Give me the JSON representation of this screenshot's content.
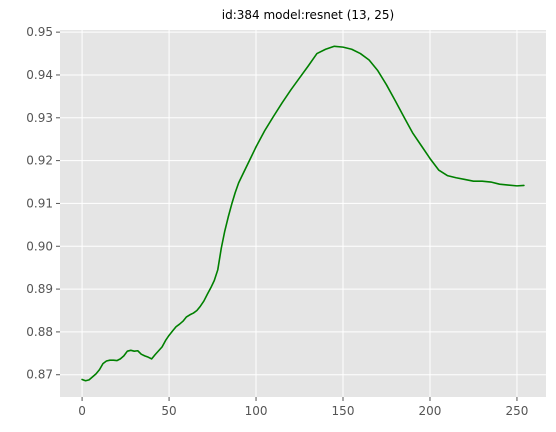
{
  "chart_data": {
    "type": "line",
    "title": "id:384 model:resnet (13, 25)",
    "xlabel": "",
    "ylabel": "",
    "xlim": [
      -12.7,
      266.7
    ],
    "ylim": [
      0.8648,
      0.9505
    ],
    "xticks": [
      0,
      50,
      100,
      150,
      200,
      250
    ],
    "xtick_labels": [
      "0",
      "50",
      "100",
      "150",
      "200",
      "250"
    ],
    "yticks": [
      0.87,
      0.88,
      0.89,
      0.9,
      0.91,
      0.92,
      0.93,
      0.94,
      0.95
    ],
    "ytick_labels": [
      "0.87",
      "0.88",
      "0.89",
      "0.90",
      "0.91",
      "0.92",
      "0.93",
      "0.94",
      "0.95"
    ],
    "grid": true,
    "legend": "none",
    "colors": {
      "background": "#e5e5e5",
      "grid": "#ffffff",
      "line": "#008000"
    },
    "series": [
      {
        "name": "",
        "x": [
          0,
          2,
          4,
          6,
          8,
          10,
          12,
          14,
          16,
          18,
          20,
          22,
          24,
          26,
          28,
          30,
          32,
          34,
          36,
          38,
          40,
          42,
          44,
          46,
          48,
          50,
          52,
          54,
          56,
          58,
          60,
          62,
          64,
          66,
          68,
          70,
          72,
          74,
          76,
          78,
          80,
          82,
          84,
          86,
          88,
          90,
          92,
          95,
          100,
          105,
          110,
          115,
          120,
          125,
          130,
          135,
          140,
          145,
          150,
          155,
          160,
          165,
          170,
          175,
          180,
          185,
          190,
          195,
          200,
          205,
          210,
          215,
          220,
          225,
          230,
          235,
          240,
          245,
          250,
          254
        ],
        "y": [
          0.8689,
          0.8686,
          0.8688,
          0.8695,
          0.8702,
          0.8712,
          0.8726,
          0.8732,
          0.8734,
          0.8734,
          0.8733,
          0.8737,
          0.8744,
          0.8755,
          0.8757,
          0.8755,
          0.8756,
          0.8748,
          0.8744,
          0.8741,
          0.8737,
          0.8747,
          0.8756,
          0.8765,
          0.878,
          0.8792,
          0.8802,
          0.8812,
          0.8818,
          0.8825,
          0.8835,
          0.884,
          0.8844,
          0.885,
          0.886,
          0.8872,
          0.8888,
          0.8903,
          0.892,
          0.8945,
          0.8995,
          0.9035,
          0.9068,
          0.9098,
          0.9125,
          0.9148,
          0.9165,
          0.919,
          0.9232,
          0.927,
          0.9303,
          0.9335,
          0.9365,
          0.9393,
          0.9421,
          0.945,
          0.946,
          0.9467,
          0.9465,
          0.946,
          0.945,
          0.9435,
          0.941,
          0.9377,
          0.934,
          0.9302,
          0.9265,
          0.9235,
          0.9205,
          0.9178,
          0.9165,
          0.916,
          0.9156,
          0.9152,
          0.9152,
          0.915,
          0.9145,
          0.9143,
          0.9141,
          0.9142
        ]
      }
    ]
  }
}
